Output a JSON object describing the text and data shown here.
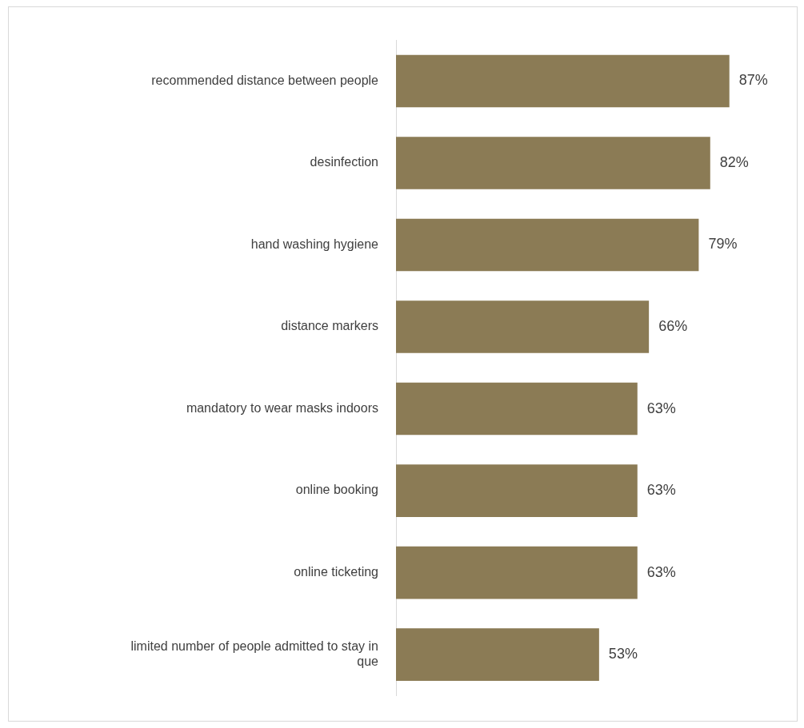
{
  "chart_data": {
    "type": "bar",
    "orientation": "horizontal",
    "categories": [
      "recommended distance between people",
      "desinfection",
      "hand washing hygiene",
      "distance markers",
      "mandatory to wear masks indoors",
      "online booking",
      "online ticketing",
      "limited number of people admitted to stay in que"
    ],
    "values": [
      87,
      82,
      79,
      66,
      63,
      63,
      63,
      53
    ],
    "value_labels": [
      "87%",
      "82%",
      "79%",
      "66%",
      "63%",
      "63%",
      "63%",
      "53%"
    ],
    "color": "#8b7b55",
    "tick_labels": "y"
  }
}
